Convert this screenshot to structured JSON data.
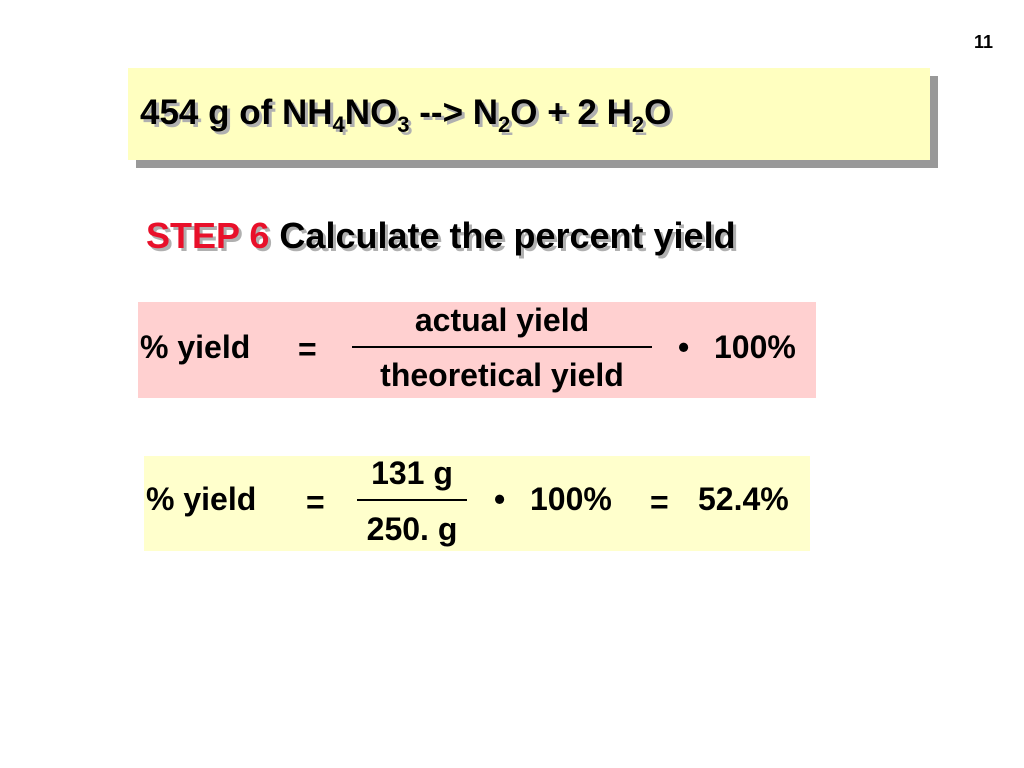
{
  "page_number": "11",
  "title": [
    "454 g of NH",
    "4",
    "NO",
    "3",
    " --> N",
    "2",
    "O + 2 H",
    "2",
    "O"
  ],
  "step": {
    "label": "STEP 6",
    "text": "Calculate the percent yield"
  },
  "formula": {
    "lhs": "% yield",
    "equals": "=",
    "numerator": "actual yield",
    "denominator": "theoretical yield",
    "times": "•",
    "factor": "100%"
  },
  "calculation": {
    "lhs": "% yield",
    "equals": "=",
    "numerator": "131 g",
    "denominator": "250. g",
    "times": "•",
    "factor": "100%",
    "equals_2": "=",
    "result": "52.4%"
  }
}
